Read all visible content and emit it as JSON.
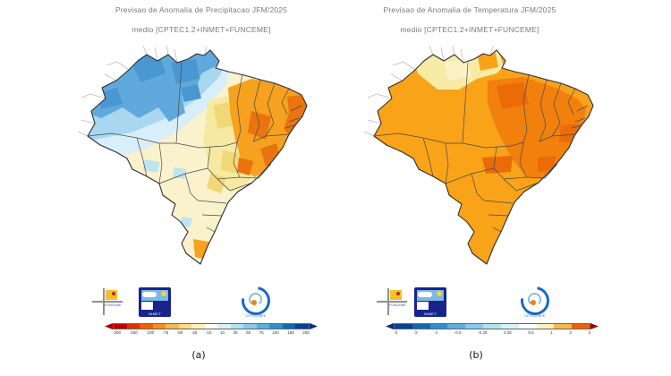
{
  "background": "#ffffff",
  "palette": {
    "map_outline": "#2e2e2e",
    "state_border": "#4a4a4a",
    "neighbor_border": "#bcbcbc",
    "precip": {
      "wet_strong": "#4a97d2",
      "wet": "#5fa9dd",
      "wet_light": "#a9d7ef",
      "wet_faint": "#d8eef8",
      "wet_patch": "#bee4f2",
      "neutral": "#faf2cc",
      "near_dry": "#f6e9a2",
      "dry_light": "#f0d878",
      "dry": "#f6a11f",
      "dry_strong": "#ea7410"
    },
    "temp": {
      "warm": "#f9a318",
      "warm_strong": "#f1800d",
      "warm_intense": "#ea6b07",
      "near_normal": "#f7eba6",
      "near_normal_light": "#fbf2c4"
    }
  },
  "panels": [
    {
      "title_line1": "Previsao de Anomalia de Precipitacao JFM/2025",
      "title_line2": "medio [CPTEC1.2+INMET+FUNCEME]",
      "caption": "(a)",
      "colorbar": {
        "arrow_left": "#a00000",
        "arrow_right": "#062e7e",
        "colors": [
          "#c00000",
          "#e03000",
          "#f06000",
          "#f69018",
          "#f8b84c",
          "#fbdc84",
          "#fdf2bc",
          "#ffffff",
          "#d9f1fa",
          "#b2e2f5",
          "#85ccec",
          "#58b0e0",
          "#2e8ed0",
          "#1266b4",
          "#0a4098"
        ],
        "labels": [
          "-200",
          "-150",
          "-100",
          "-75",
          "-50",
          "-25",
          "-10",
          "10",
          "25",
          "50",
          "75",
          "100",
          "150",
          "200"
        ]
      },
      "regions": [
        {
          "area": "Amazonia / Norte",
          "anomaly": "chuva acima da media (azul)"
        },
        {
          "area": "Leste do Nordeste",
          "anomaly": "chuva abaixo da media (laranja escuro)"
        },
        {
          "area": "Centro-Oeste / Sudeste",
          "anomaly": "proximo da media (amarelo claro)"
        },
        {
          "area": "Rio Grande do Sul",
          "anomaly": "chuva abaixo da media (laranja)"
        }
      ]
    },
    {
      "title_line1": "Previsao de Anomalia de Temperatura JFM/2025",
      "title_line2": "medio [CPTEC1.2+INMET+FUNCEME]",
      "caption": "(b)",
      "colorbar": {
        "arrow_left": "#062e7e",
        "arrow_right": "#a00000",
        "colors": [
          "#0a4098",
          "#1266b4",
          "#2e8ed0",
          "#58b0e0",
          "#85ccec",
          "#b2e2f5",
          "#d9f1fa",
          "#ffffff",
          "#fdf2bc",
          "#f8b84c",
          "#f06000"
        ],
        "labels": [
          "-3",
          "-2",
          "-1",
          "-0.5",
          "-0.25",
          "0.25",
          "0.5",
          "1",
          "2",
          "3"
        ]
      },
      "regions": [
        {
          "area": "Maior parte do Brasil",
          "anomaly": "temperatura acima da media (laranja)"
        },
        {
          "area": "Interior do Nordeste / Centro-Leste",
          "anomaly": "fortemente acima da media (laranja escuro)"
        },
        {
          "area": "Extremo Norte e Sao Paulo",
          "anomaly": "proximo da media (amarelo claro)"
        }
      ]
    }
  ],
  "logos": {
    "funceme": "FUNCEME",
    "inmet": "INMET",
    "cptec": "CPTEC/INPE"
  }
}
